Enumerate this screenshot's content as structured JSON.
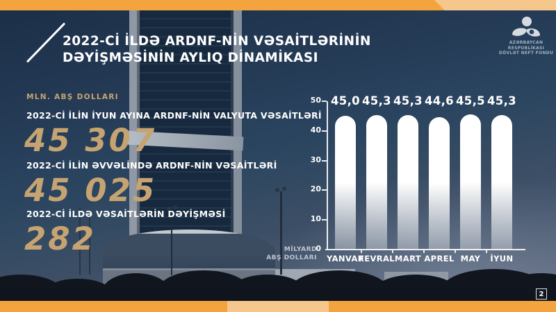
{
  "slide": {
    "title_line1": "2022-Cİ İLDƏ ARDNF-NİN VƏSAİTLƏRİNİN",
    "title_line2": "DƏYİŞMƏSİNİN AYLIQ DİNAMİKASI",
    "page_number": "2"
  },
  "logo": {
    "org_line1": "AZƏRBAYCAN RESPUBLİKASI",
    "org_line2": "DÖVLƏT NEFT FONDU"
  },
  "stats": {
    "unit_label": "MLN. ABŞ DOLLARI",
    "items": [
      {
        "label": "2022-Cİ İLİN İYUN AYINA ARDNF-NİN VALYUTA VƏSAİTLƏRİ",
        "value": "45 307"
      },
      {
        "label": "2022-Cİ İLİN ƏVVƏLİNDƏ ARDNF-NİN VƏSAİTLƏRİ",
        "value": "45 025"
      },
      {
        "label": "2022-Cİ İLDƏ VƏSAİTLƏRİN DƏYİŞMƏSİ",
        "value": "282"
      }
    ]
  },
  "chart_data": {
    "type": "bar",
    "categories": [
      "YANVAR",
      "FEVRAL",
      "MART",
      "APREL",
      "MAY",
      "İYUN"
    ],
    "values": [
      45.0,
      45.3,
      45.3,
      44.6,
      45.5,
      45.3
    ],
    "value_labels": [
      "45,0",
      "45,3",
      "45,3",
      "44,6",
      "45,5",
      "45,3"
    ],
    "yticks": [
      50,
      40,
      30,
      20,
      10,
      0
    ],
    "ylim": [
      0,
      50
    ],
    "ylabel": "MİLYARD ABŞ DOLLARI",
    "ylabel_lines": [
      "MİLYARD",
      "ABŞ DOLLARI"
    ],
    "grid": false,
    "legend": "none",
    "bar_color": "#FFFFFF"
  },
  "colors": {
    "orange_dark": "#F4A43E",
    "orange_light": "#F6C78C",
    "gold": "#C6A472",
    "navy_sky": "#2B4560",
    "text_white": "#FFFFFF"
  }
}
